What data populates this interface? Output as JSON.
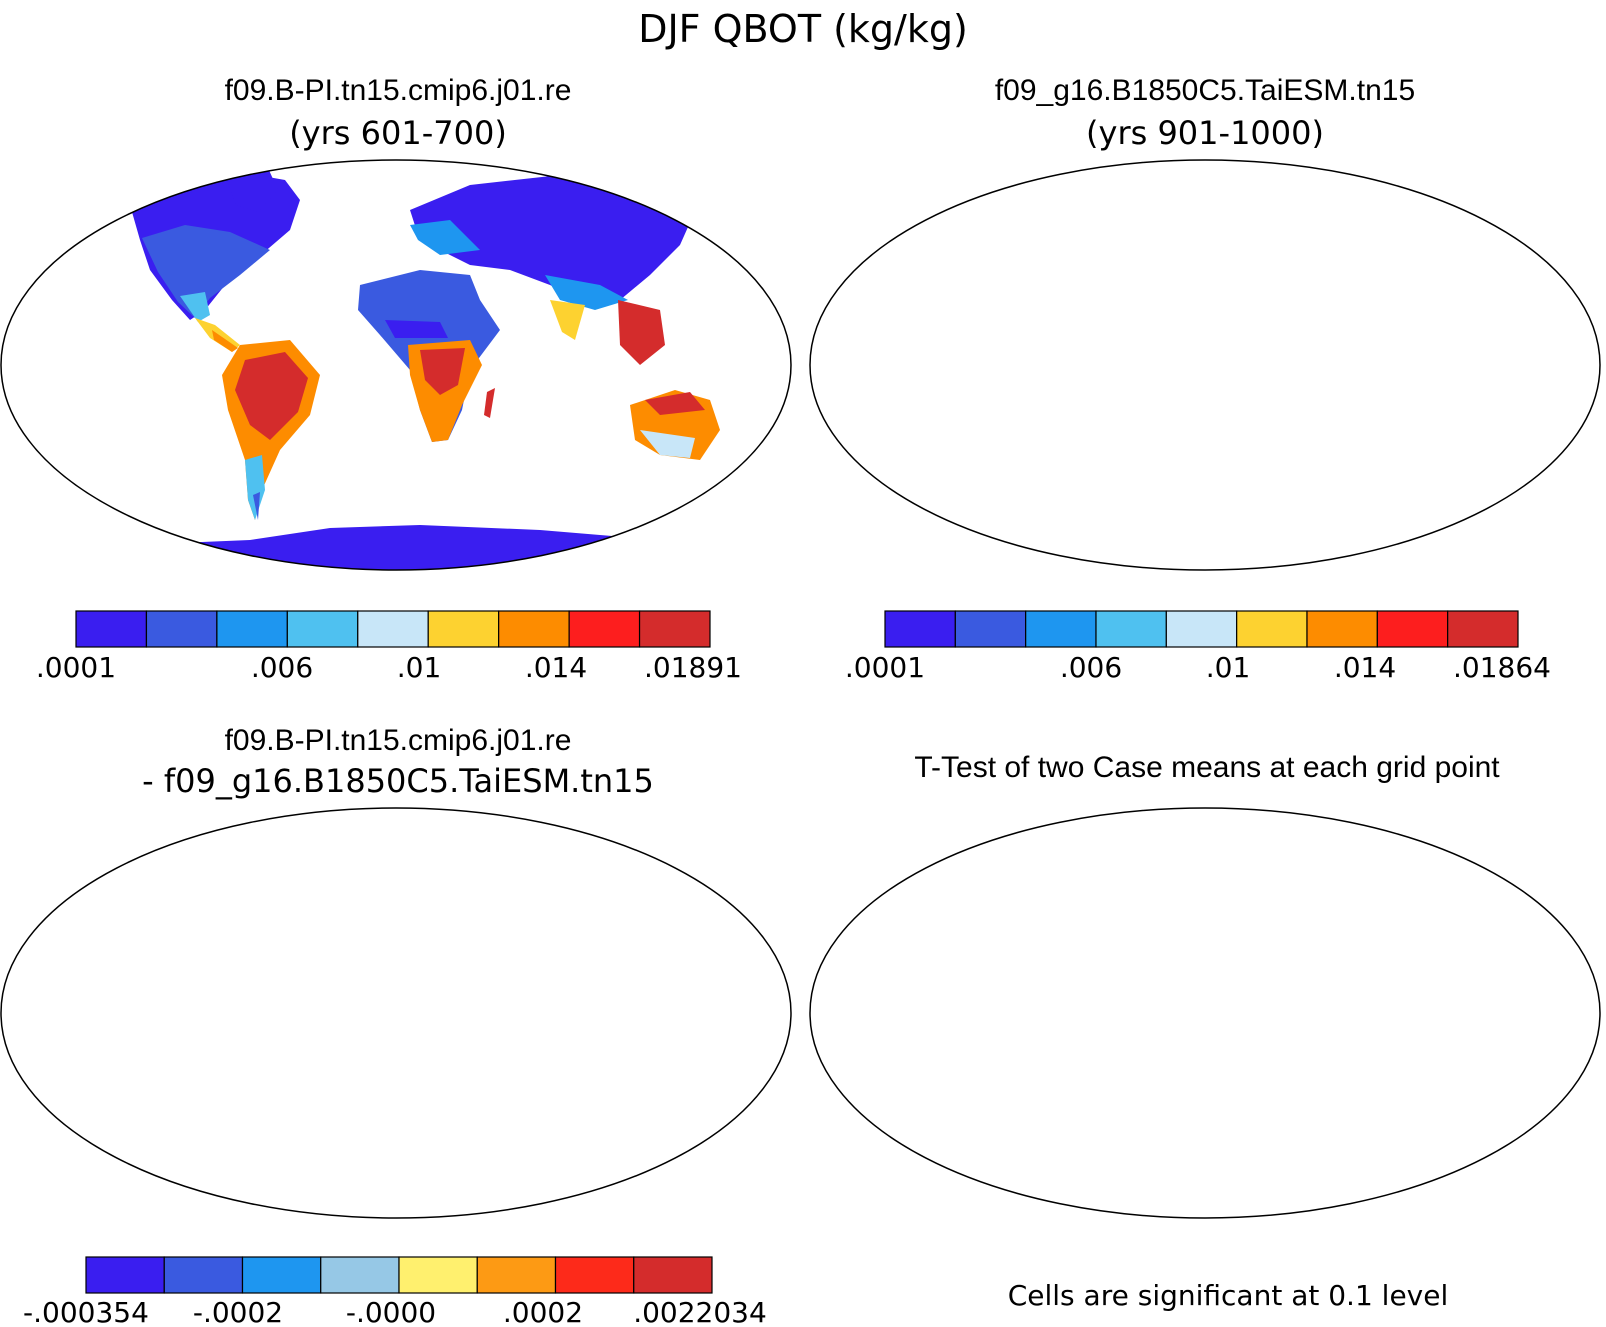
{
  "main_title": "DJF QBOT (kg/kg)",
  "colors": {
    "levels_main": [
      "#3a1ef0",
      "#3a5ae0",
      "#1e96f0",
      "#4fc1f0",
      "#c8e6f8",
      "#fdd230",
      "#fd8c00",
      "#fd1e1e",
      "#d42c2c"
    ],
    "levels_diff": [
      "#3a1ef0",
      "#3a5ae0",
      "#1e96f0",
      "#96c8e6",
      "#fff06e",
      "#fd9a14",
      "#fd2a1a",
      "#d42c2c"
    ],
    "significant": "#ff0000",
    "outline": "#000000"
  },
  "panels": [
    {
      "id": "case1",
      "title": "f09.B-PI.tn15.cmip6.j01.re",
      "subtitle": "(yrs 601-700)",
      "colorbar_labels": [
        ".0001",
        ".006",
        ".01",
        ".014",
        ".01891"
      ]
    },
    {
      "id": "case2",
      "title": "f09_g16.B1850C5.TaiESM.tn15",
      "subtitle": "(yrs 901-1000)",
      "colorbar_labels": [
        ".0001",
        ".006",
        ".01",
        ".014",
        ".01864"
      ]
    },
    {
      "id": "diff",
      "title": "f09.B-PI.tn15.cmip6.j01.re",
      "subtitle": "- f09_g16.B1850C5.TaiESM.tn15",
      "colorbar_labels": [
        "-.000354",
        "-.0002",
        "-.0000",
        ".0002",
        ".0022034"
      ]
    },
    {
      "id": "ttest",
      "title": "T-Test of two Case means at each grid point",
      "note": "Cells are significant at 0.1 level"
    }
  ]
}
